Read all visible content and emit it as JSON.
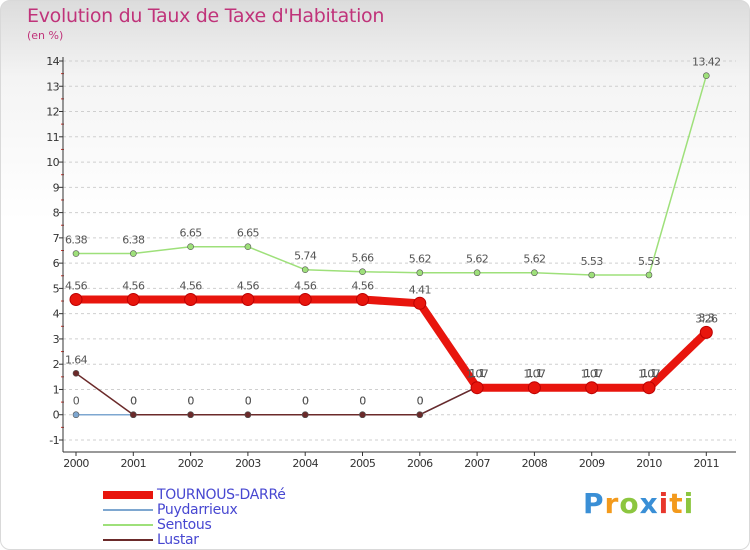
{
  "header": {
    "title": "Evolution du Taux de Taxe d'Habitation",
    "subtitle": "(en %)"
  },
  "brand": {
    "name": "Proxiti",
    "letters": [
      "P",
      "r",
      "o",
      "x",
      "i",
      "t",
      "i"
    ],
    "colors": [
      "#3a8fd6",
      "#f39a1c",
      "#8cc63f",
      "#3a8fd6",
      "#e8372c",
      "#f39a1c",
      "#8cc63f"
    ]
  },
  "chart_data": {
    "type": "line",
    "title": "Evolution du Taux de Taxe d'Habitation",
    "ylabel": "(en %)",
    "xlabel": "",
    "x": [
      "2000",
      "2001",
      "2002",
      "2003",
      "2004",
      "2005",
      "2006",
      "2007",
      "2008",
      "2009",
      "2010",
      "2011"
    ],
    "ylim": [
      -1,
      14
    ],
    "yticks": [
      -1,
      0,
      1,
      2,
      3,
      4,
      5,
      6,
      7,
      8,
      9,
      10,
      11,
      12,
      13,
      14
    ],
    "grid": "horizontal dashed",
    "legend_position": "bottom-left",
    "series": [
      {
        "name": "TOURNOUS-DARRé",
        "color": "#e8150d",
        "width": 8,
        "values": [
          4.56,
          4.56,
          4.56,
          4.56,
          4.56,
          4.56,
          4.41,
          1.07,
          1.07,
          1.07,
          1.07,
          3.26
        ],
        "labels": [
          "4.56",
          "4.56",
          "4.56",
          "4.56",
          "4.56",
          "4.56",
          "4.41",
          "1.07",
          "1.07",
          "1.07",
          "1.07",
          "3.26"
        ]
      },
      {
        "name": "Puydarrieux",
        "color": "#7ea7d0",
        "width": 1.5,
        "values": [
          0,
          0,
          0,
          0,
          0,
          0,
          0,
          1.1,
          1.1,
          1.1,
          1.1,
          3.3
        ],
        "labels": [
          "0",
          "0",
          "0",
          "0",
          "0",
          "0",
          "0",
          "1.1",
          "1.1",
          "1.1",
          "1.1",
          "3.3"
        ]
      },
      {
        "name": "Sentous",
        "color": "#9ee07a",
        "width": 1.5,
        "values": [
          6.38,
          6.38,
          6.65,
          6.65,
          5.74,
          5.66,
          5.62,
          5.62,
          5.62,
          5.53,
          5.53,
          13.42
        ],
        "labels": [
          "6.38",
          "6.38",
          "6.65",
          "6.65",
          "5.74",
          "5.66",
          "5.62",
          "5.62",
          "5.62",
          "5.53",
          "5.53",
          "13.42"
        ]
      },
      {
        "name": "Lustar",
        "color": "#6b2a2a",
        "width": 1.5,
        "values": [
          1.64,
          0,
          0,
          0,
          0,
          0,
          0,
          1.1,
          1.1,
          1.1,
          1.1,
          3.3
        ],
        "labels": [
          "1.64",
          "0",
          "0",
          "0",
          "0",
          "0",
          "0",
          "1.1",
          "1.1",
          "1.1",
          "1.1",
          "3.3"
        ]
      }
    ]
  }
}
